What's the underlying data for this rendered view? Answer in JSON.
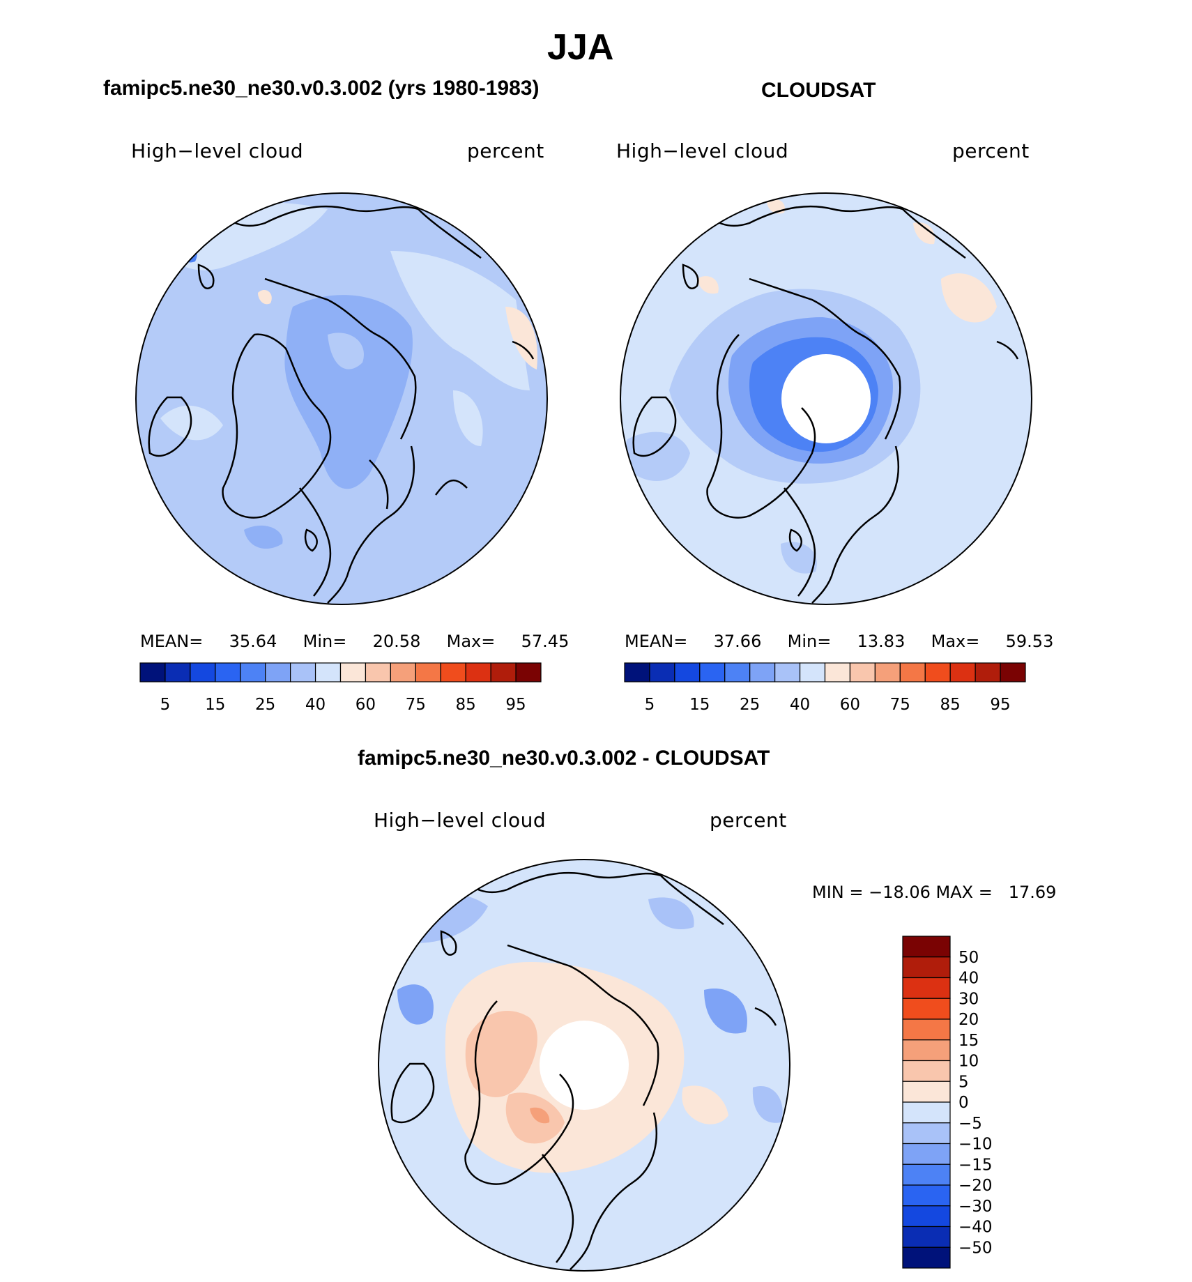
{
  "season": "JJA",
  "panels": {
    "model": {
      "title": "famipc5.ne30_ne30.v0.3.002 (yrs 1980-1983)",
      "variable": "High−level cloud",
      "units": "percent",
      "mean_label": "MEAN=",
      "mean": "35.64",
      "min_label": "Min=",
      "min": "20.58",
      "max_label": "Max=",
      "max": "57.45"
    },
    "obs": {
      "title": "CLOUDSAT",
      "variable": "High−level cloud",
      "units": "percent",
      "mean_label": "MEAN=",
      "mean": "37.66",
      "min_label": "Min=",
      "min": "13.83",
      "max_label": "Max=",
      "max": "59.53"
    },
    "diff": {
      "title": "famipc5.ne30_ne30.v0.3.002 - CLOUDSAT",
      "variable": "High−level cloud",
      "units": "percent",
      "minmax_text": "MIN = −18.06 MAX =   17.69"
    }
  },
  "abs_colorbar": {
    "colors": [
      "#00127a",
      "#0a2db4",
      "#1448e0",
      "#2a64f2",
      "#4d82f5",
      "#7ea3f6",
      "#a9c2f8",
      "#d4e4fb",
      "#fbe6d8",
      "#f9c6ad",
      "#f5a07a",
      "#f47746",
      "#f04d1d",
      "#dc3112",
      "#b01d0b",
      "#7a0303"
    ],
    "tick_labels": [
      "5",
      "15",
      "25",
      "40",
      "60",
      "75",
      "85",
      "95"
    ]
  },
  "diff_colorbar": {
    "colors": [
      "#7a0303",
      "#b01d0b",
      "#dc3112",
      "#f04d1d",
      "#f47746",
      "#f5a07a",
      "#f9c6ad",
      "#fbe6d8",
      "#d4e4fb",
      "#a9c2f8",
      "#7ea3f6",
      "#4d82f5",
      "#2a64f2",
      "#1448e0",
      "#0a2db4",
      "#00127a"
    ],
    "tick_labels": [
      "50",
      "40",
      "30",
      "20",
      "15",
      "10",
      "5",
      "0",
      "−5",
      "−10",
      "−15",
      "−20",
      "−30",
      "−40",
      "−50"
    ]
  }
}
